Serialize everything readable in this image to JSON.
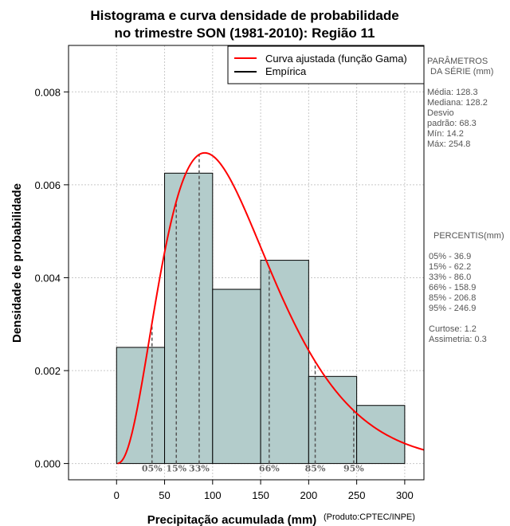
{
  "chart_data": {
    "type": "bar",
    "title_line1": "Histograma e curva densidade de probabilidade",
    "title_line2": "no trimestre SON (1981-2010): Região 11",
    "xlabel": "Precipitação acumulada (mm)",
    "ylabel": "Densidade de probabilidade",
    "source_note": "(Produto:CPTEC/INPE)",
    "xlim": [
      -50,
      320
    ],
    "ylim": [
      -0.00035,
      0.009
    ],
    "x_ticks": [
      0,
      50,
      100,
      150,
      200,
      250,
      300
    ],
    "y_ticks": [
      0.0,
      0.002,
      0.004,
      0.006,
      0.008
    ],
    "y_tick_labels": [
      "0.000",
      "0.002",
      "0.004",
      "0.006",
      "0.008"
    ],
    "grid": true,
    "histogram": {
      "bin_edges": [
        0,
        50,
        100,
        150,
        200,
        250,
        300
      ],
      "densities": [
        0.0025,
        0.00625,
        0.00375,
        0.004375,
        0.001875,
        0.00125
      ],
      "fill_color": "#b3cccb"
    },
    "gamma_fit": {
      "shape": 3.53,
      "scale": 36.3,
      "x_range": [
        1,
        320
      ],
      "color": "#ff0000"
    },
    "percentile_lines": [
      {
        "label": "05%",
        "x": 36.9
      },
      {
        "label": "15%",
        "x": 62.2
      },
      {
        "label": "33%",
        "x": 86.0
      },
      {
        "label": "66%",
        "x": 158.9
      },
      {
        "label": "85%",
        "x": 206.8
      },
      {
        "label": "95%",
        "x": 246.9
      }
    ],
    "legend": [
      {
        "label": "Curva ajustada (função Gama)",
        "color": "#ff0000"
      },
      {
        "label": "Empírica",
        "color": "#000000"
      }
    ],
    "legend_position": "top-right"
  },
  "stats_panel": {
    "heading_line1": "PARÂMETROS",
    "heading_line2": "DA SÉRIE (mm)",
    "media": "Média:  128.3",
    "mediana": "Mediana:  128.2",
    "desvio_line1": "Desvio",
    "desvio_line2": "padrão:  68.3",
    "min": "Mín:  14.2",
    "max": "Máx:  254.8"
  },
  "percentis_panel": {
    "heading": "PERCENTIS(mm)",
    "rows": [
      "05% -  36.9",
      "15% -  62.2",
      "33% -  86.0",
      "66% -  158.9",
      "85% -  206.8",
      "95% -  246.9"
    ],
    "curtose": "Curtose:  1.2",
    "assimetria": "Assimetria:  0.3"
  }
}
